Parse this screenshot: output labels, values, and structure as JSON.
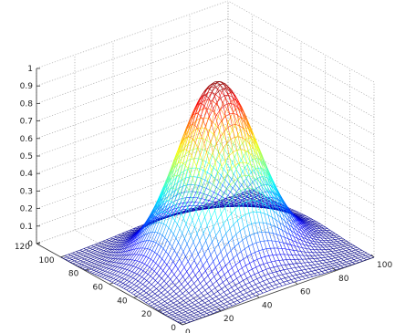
{
  "chart_data": {
    "type": "surface-mesh",
    "function": "z = exp(-((x-50)^2 + (y-50)^2) / (2 * 18^2))",
    "x": {
      "min": 0,
      "max": 100,
      "ticks": [
        0,
        20,
        40,
        60,
        80,
        100
      ]
    },
    "y": {
      "min": 0,
      "max": 120,
      "ticks": [
        0,
        20,
        40,
        60,
        80,
        100,
        120
      ]
    },
    "z": {
      "min": 0,
      "max": 1,
      "ticks": [
        0,
        0.1,
        0.2,
        0.3,
        0.4,
        0.5,
        0.6,
        0.7,
        0.8,
        0.9,
        1
      ]
    },
    "x_tick_labels": [
      "0",
      "20",
      "40",
      "60",
      "80",
      "100"
    ],
    "y_tick_labels": [
      "0",
      "20",
      "40",
      "60",
      "80",
      "100",
      "120"
    ],
    "z_tick_labels": [
      "0",
      "0.1",
      "0.2",
      "0.3",
      "0.4",
      "0.5",
      "0.6",
      "0.7",
      "0.8",
      "0.9",
      "1"
    ],
    "peak": {
      "x": 50,
      "y": 50,
      "z": 1
    },
    "sigma": 18,
    "mesh_extent": {
      "x": [
        0,
        100
      ],
      "y": [
        0,
        100
      ]
    },
    "mesh_step": 2,
    "colormap": "jet",
    "grid": true,
    "title": "",
    "xlabel": "",
    "ylabel": "",
    "zlabel": ""
  }
}
